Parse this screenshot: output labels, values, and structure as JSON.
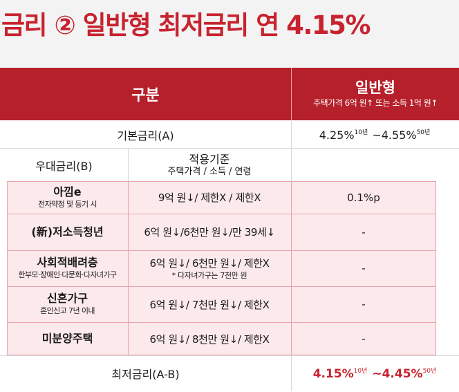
{
  "title": "금리 ② 일반형 최저금리 연 4.15%",
  "header": {
    "left": "구분",
    "right_title": "일반형",
    "right_sub": "주택가격 6억 원↑ 또는 소득 1억 원↑"
  },
  "base_rate": {
    "label": "기본금리(A)",
    "from": "4.25%",
    "from_term": "10년",
    "sep": " ~",
    "to": "4.55%",
    "to_term": "50년"
  },
  "preferential": {
    "label": "우대금리(B)",
    "criteria_title": "적용기준",
    "criteria_sub": "주택가격 / 소득 / 연령"
  },
  "rows": [
    {
      "name": "아낌e",
      "sub": "전자약정 및 등기 시",
      "criteria": "9억 원↓/ 제한X / 제한X",
      "criteria_note": "",
      "value": "0.1%p"
    },
    {
      "name": "(新)저소득청년",
      "sub": "",
      "criteria": "6억 원↓/6천만 원↓/만 39세↓",
      "criteria_note": "",
      "value": "-"
    },
    {
      "name": "사회적배려층",
      "sub": "한부모·장애인·다문화·다자녀가구",
      "criteria": "6억 원↓/ 6천만 원↓/ 제한X",
      "criteria_note": "* 다자녀가구는 7천만 원",
      "value": "-"
    },
    {
      "name": "신혼가구",
      "sub": "혼인신고 7년 이내",
      "criteria": "6억 원↓/ 7천만 원↓/ 제한X",
      "criteria_note": "",
      "value": "-"
    },
    {
      "name": "미분양주택",
      "sub": "",
      "criteria": "6억 원↓/ 8천만 원↓/ 제한X",
      "criteria_note": "",
      "value": "-"
    }
  ],
  "min_rate": {
    "label": "최저금리(A-B)",
    "from": "4.15%",
    "from_term": "10년",
    "sep": " ~",
    "to": "4.45%",
    "to_term": "50년"
  },
  "colors": {
    "accent": "#c7232f",
    "header_bg": "#b5202b",
    "pink_bg": "#fce9ec"
  }
}
